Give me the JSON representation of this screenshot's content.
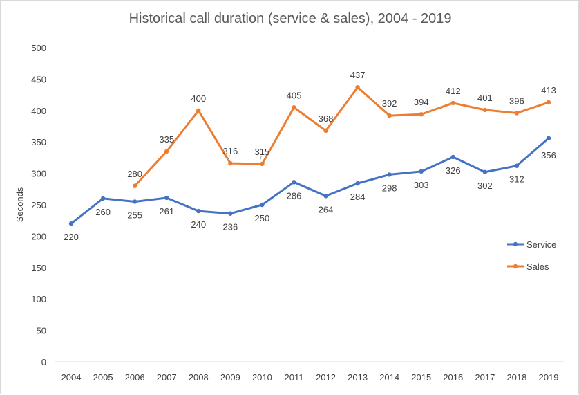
{
  "chart_data": {
    "type": "line",
    "title": "Historical call duration (service & sales), 2004 - 2019",
    "xlabel": "",
    "ylabel": "Seconds",
    "ylim": [
      0,
      500
    ],
    "yticks": [
      0,
      50,
      100,
      150,
      200,
      250,
      300,
      350,
      400,
      450,
      500
    ],
    "categories": [
      "2004",
      "2005",
      "2006",
      "2007",
      "2008",
      "2009",
      "2010",
      "2011",
      "2012",
      "2013",
      "2014",
      "2015",
      "2016",
      "2017",
      "2018",
      "2019"
    ],
    "grid": false,
    "legend_position": "right",
    "series": [
      {
        "name": "Service",
        "color": "#4472c4",
        "values": [
          220,
          260,
          255,
          261,
          240,
          236,
          250,
          286,
          264,
          284,
          298,
          303,
          326,
          302,
          312,
          356
        ]
      },
      {
        "name": "Sales",
        "color": "#ed7d31",
        "values": [
          null,
          null,
          280,
          335,
          400,
          316,
          315,
          405,
          368,
          437,
          392,
          394,
          412,
          401,
          396,
          413
        ]
      }
    ]
  }
}
